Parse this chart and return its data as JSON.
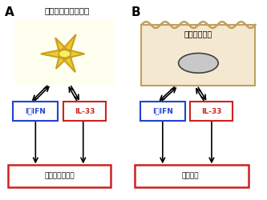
{
  "bg_color": "#ffffff",
  "panel_a_label": "A",
  "panel_b_label": "B",
  "panel_a_title": "形質細胞様樹状細胞",
  "panel_b_title": "膵臓腺房細胞",
  "ifn_label": "I型IFN",
  "il33_label": "IL-33",
  "panel_a_bottom": "自己免疫性膵炎",
  "panel_b_bottom": "慢性膵炎",
  "cell_bg_a": "#fffff0",
  "cell_color_a": "#f0c830",
  "cell_outline_a": "#c8a020",
  "cell_nucleus_a": "#e8e800",
  "cell_bg_b": "#f5e8d0",
  "cell_border_b": "#c0a060",
  "nucleus_fill_b": "#c8c8c8",
  "nucleus_outline_b": "#404040",
  "ifn_box_color": "#2244cc",
  "il33_box_color": "#cc2222",
  "bottom_box_color": "#cc2222",
  "arrow_color": "#000000",
  "text_color": "#000000"
}
